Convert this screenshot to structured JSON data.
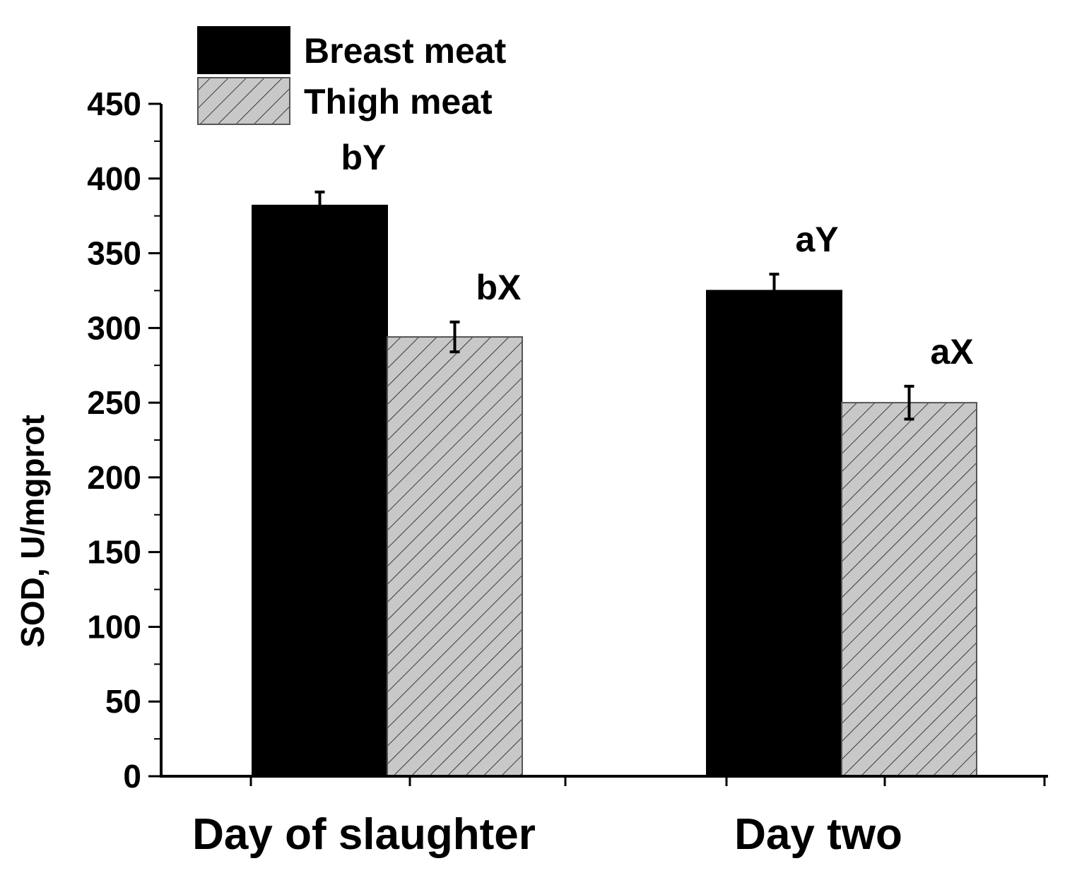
{
  "chart_data": {
    "type": "bar",
    "categories": [
      "Day of slaughter",
      "Day two"
    ],
    "series": [
      {
        "name": "Breast meat",
        "color": "#000000",
        "pattern": "solid",
        "values": [
          382,
          325
        ],
        "errors": [
          9,
          11
        ],
        "labels": [
          "bY",
          "aY"
        ]
      },
      {
        "name": "Thigh meat",
        "color": "#c8c8c8",
        "pattern": "hatched",
        "values": [
          294,
          250
        ],
        "errors": [
          10,
          11
        ],
        "labels": [
          "bX",
          "aX"
        ]
      }
    ],
    "ylabel": "SOD, U/mgprot",
    "xlabel": "",
    "ylim": [
      0,
      450
    ],
    "yticks": [
      0,
      50,
      100,
      150,
      200,
      250,
      300,
      350,
      400,
      450
    ],
    "legend_position": "top-left"
  }
}
